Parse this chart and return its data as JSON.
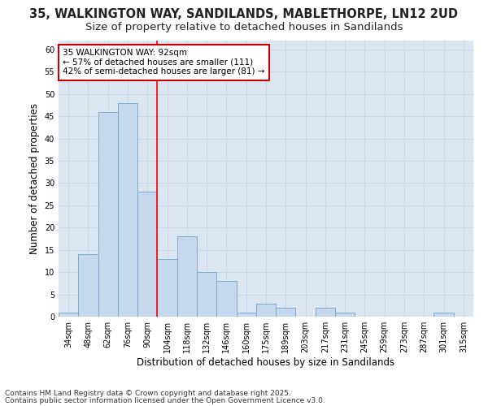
{
  "title_line1": "35, WALKINGTON WAY, SANDILANDS, MABLETHORPE, LN12 2UD",
  "title_line2": "Size of property relative to detached houses in Sandilands",
  "xlabel": "Distribution of detached houses by size in Sandilands",
  "ylabel": "Number of detached properties",
  "categories": [
    "34sqm",
    "48sqm",
    "62sqm",
    "76sqm",
    "90sqm",
    "104sqm",
    "118sqm",
    "132sqm",
    "146sqm",
    "160sqm",
    "175sqm",
    "189sqm",
    "203sqm",
    "217sqm",
    "231sqm",
    "245sqm",
    "259sqm",
    "273sqm",
    "287sqm",
    "301sqm",
    "315sqm"
  ],
  "values": [
    1,
    14,
    46,
    48,
    28,
    13,
    18,
    10,
    8,
    1,
    3,
    2,
    0,
    2,
    1,
    0,
    0,
    0,
    0,
    1,
    0
  ],
  "bar_color": "#c5d8ed",
  "bar_edge_color": "#7aadd4",
  "grid_color": "#c8d4e3",
  "red_line_x": 4.5,
  "annotation_text": "35 WALKINGTON WAY: 92sqm\n← 57% of detached houses are smaller (111)\n42% of semi-detached houses are larger (81) →",
  "annotation_box_facecolor": "#ffffff",
  "annotation_box_edgecolor": "#cc0000",
  "ylim": [
    0,
    62
  ],
  "yticks": [
    0,
    5,
    10,
    15,
    20,
    25,
    30,
    35,
    40,
    45,
    50,
    55,
    60
  ],
  "fig_facecolor": "#ffffff",
  "plot_facecolor": "#dce6f1",
  "title_fontsize": 10.5,
  "subtitle_fontsize": 9.5,
  "xlabel_fontsize": 8.5,
  "ylabel_fontsize": 8.5,
  "tick_fontsize": 7,
  "annotation_fontsize": 7.5,
  "footer_fontsize": 6.5,
  "footer_line1": "Contains HM Land Registry data © Crown copyright and database right 2025.",
  "footer_line2": "Contains public sector information licensed under the Open Government Licence v3.0."
}
